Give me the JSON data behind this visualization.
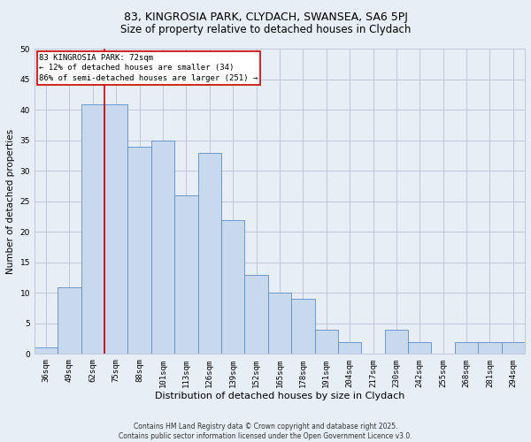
{
  "title_line1": "83, KINGROSIA PARK, CLYDACH, SWANSEA, SA6 5PJ",
  "title_line2": "Size of property relative to detached houses in Clydach",
  "xlabel": "Distribution of detached houses by size in Clydach",
  "ylabel": "Number of detached properties",
  "categories": [
    "36sqm",
    "49sqm",
    "62sqm",
    "75sqm",
    "88sqm",
    "101sqm",
    "113sqm",
    "126sqm",
    "139sqm",
    "152sqm",
    "165sqm",
    "178sqm",
    "191sqm",
    "204sqm",
    "217sqm",
    "230sqm",
    "242sqm",
    "255sqm",
    "268sqm",
    "281sqm",
    "294sqm"
  ],
  "values": [
    1,
    11,
    41,
    41,
    34,
    35,
    26,
    33,
    22,
    13,
    10,
    9,
    4,
    2,
    0,
    4,
    2,
    0,
    2,
    2,
    2
  ],
  "bar_color": "#c8d9ed",
  "bar_edge_color": "#5b8cc8",
  "grid_color": "#c0c8d8",
  "background_color": "#e8eef5",
  "vline_color": "#cc0000",
  "annotation_text": "83 KINGROSIA PARK: 72sqm\n← 12% of detached houses are smaller (34)\n86% of semi-detached houses are larger (251) →",
  "annotation_box_color": "white",
  "annotation_edge_color": "#cc0000",
  "ylim": [
    0,
    50
  ],
  "yticks": [
    0,
    5,
    10,
    15,
    20,
    25,
    30,
    35,
    40,
    45,
    50
  ],
  "footnote": "Contains HM Land Registry data © Crown copyright and database right 2025.\nContains public sector information licensed under the Open Government Licence v3.0.",
  "title_fontsize": 9,
  "subtitle_fontsize": 8.5,
  "xlabel_fontsize": 8,
  "ylabel_fontsize": 7.5,
  "tick_fontsize": 6.5,
  "annot_fontsize": 6.5,
  "footnote_fontsize": 5.5
}
